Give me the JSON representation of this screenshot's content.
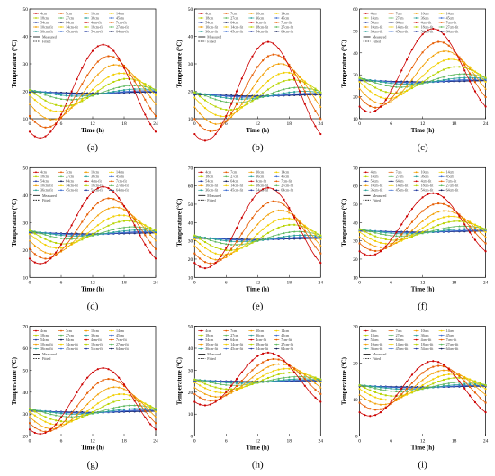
{
  "layout_panels": 9,
  "common": {
    "xlabel": "Time (h)",
    "ylabel": "Temperature (°C)",
    "xlim": [
      0,
      24
    ],
    "xticks": [
      0,
      6,
      12,
      18,
      24
    ],
    "series_labels": [
      "4cm",
      "7cm",
      "10cm",
      "14cm",
      "18cm",
      "27cm",
      "36cm",
      "45cm",
      "54cm",
      "64cm",
      "4cm-fit",
      "7cm-fit",
      "10cm-fit",
      "14cm-fit",
      "18cm-fit",
      "27cm-fit",
      "36cm-fit",
      "45cm-fit",
      "54cm-fit",
      "64cm-fit"
    ],
    "legend_lines": [
      "Measured",
      "Fitted"
    ],
    "depths_cm": [
      4,
      7,
      10,
      14,
      18,
      27,
      36,
      45,
      54,
      64
    ],
    "colors": [
      "#cc0000",
      "#e65c00",
      "#f29e00",
      "#f2cf00",
      "#b8d400",
      "#5cb85c",
      "#2aa198",
      "#3b6ccf",
      "#233a9e",
      "#101c55"
    ]
  },
  "chart_data": [
    {
      "label": "(a)",
      "type": "line",
      "ylim": [
        10,
        50
      ],
      "yticks": [
        10,
        20,
        30,
        40,
        50
      ],
      "mean": 20,
      "amp_surface": 17,
      "deep_base": 19.5,
      "peak_hour": 14,
      "amps": [
        17,
        13,
        10,
        7,
        5,
        2.6,
        1.3,
        0.7,
        0.4,
        0.2
      ]
    },
    {
      "label": "(b)",
      "type": "line",
      "ylim": [
        10,
        50
      ],
      "yticks": [
        10,
        20,
        30,
        40,
        50
      ],
      "mean": 20,
      "amp_surface": 18,
      "deep_base": 18.5,
      "peak_hour": 14,
      "amps": [
        18,
        14,
        11,
        8,
        5.5,
        2.8,
        1.4,
        0.7,
        0.4,
        0.2
      ]
    },
    {
      "label": "(c)",
      "type": "line",
      "ylim": [
        10,
        60
      ],
      "yticks": [
        10,
        20,
        30,
        40,
        50,
        60
      ],
      "mean": 32,
      "amp_surface": 19,
      "deep_base": 27,
      "peak_hour": 14,
      "amps": [
        19,
        15,
        12,
        9,
        6,
        3,
        1.5,
        0.8,
        0.4,
        0.2
      ]
    },
    {
      "label": "(d)",
      "type": "line",
      "ylim": [
        10,
        50
      ],
      "yticks": [
        10,
        20,
        30,
        40,
        50
      ],
      "mean": 29,
      "amp_surface": 14,
      "deep_base": 26,
      "peak_hour": 14,
      "amps": [
        14,
        11,
        8.5,
        6,
        4.2,
        2.2,
        1.1,
        0.6,
        0.3,
        0.15
      ]
    },
    {
      "label": "(e)",
      "type": "line",
      "ylim": [
        10,
        70
      ],
      "yticks": [
        10,
        20,
        30,
        40,
        50,
        60,
        70
      ],
      "mean": 37,
      "amp_surface": 22,
      "deep_base": 31,
      "peak_hour": 14,
      "amps": [
        22,
        17,
        13.5,
        10,
        7,
        3.6,
        1.8,
        0.9,
        0.5,
        0.25
      ]
    },
    {
      "label": "(f)",
      "type": "line",
      "ylim": [
        10,
        70
      ],
      "yticks": [
        10,
        20,
        30,
        40,
        50,
        60,
        70
      ],
      "mean": 39,
      "amp_surface": 17,
      "deep_base": 35,
      "peak_hour": 14,
      "amps": [
        17,
        13,
        10,
        7.5,
        5.2,
        2.7,
        1.4,
        0.7,
        0.4,
        0.2
      ]
    },
    {
      "label": "(g)",
      "type": "line",
      "ylim": [
        20,
        70
      ],
      "yticks": [
        20,
        30,
        40,
        50,
        60,
        70
      ],
      "mean": 36,
      "amp_surface": 15,
      "deep_base": 31,
      "peak_hour": 14,
      "amps": [
        15,
        12,
        9.5,
        7,
        5,
        2.6,
        1.3,
        0.7,
        0.4,
        0.2
      ]
    },
    {
      "label": "(h)",
      "type": "line",
      "ylim": [
        0,
        50
      ],
      "yticks": [
        0,
        10,
        20,
        30,
        40,
        50
      ],
      "mean": 26,
      "amp_surface": 12,
      "deep_base": 25,
      "peak_hour": 14,
      "amps": [
        12,
        9.5,
        7.5,
        5.5,
        3.8,
        2,
        1,
        0.5,
        0.3,
        0.15
      ]
    },
    {
      "label": "(i)",
      "type": "line",
      "ylim": [
        0,
        30
      ],
      "yticks": [
        0,
        10,
        20,
        30
      ],
      "mean": 13,
      "amp_surface": 7.5,
      "deep_base": 13.5,
      "peak_hour": 14,
      "amps": [
        7.5,
        6,
        4.7,
        3.5,
        2.5,
        1.3,
        0.7,
        0.35,
        0.2,
        0.1
      ]
    }
  ]
}
